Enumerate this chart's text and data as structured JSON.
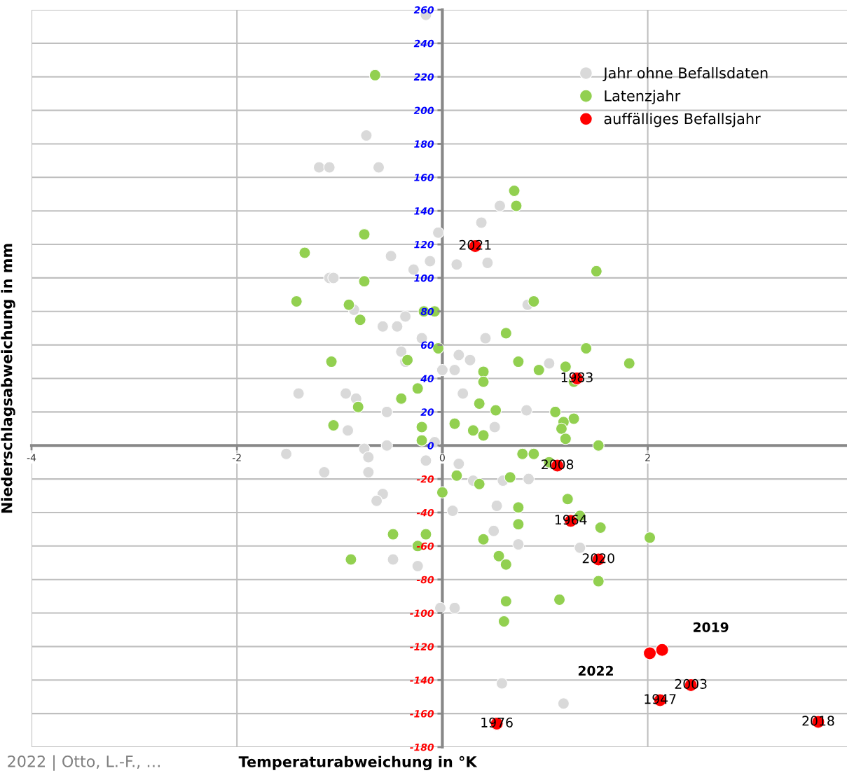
{
  "chart_data": {
    "type": "scatter",
    "xlabel": "Temperaturabweichung in °K",
    "ylabel": "Niederschlagsabweichung in mm",
    "xlim": [
      -4,
      3.94
    ],
    "ylim": [
      -180,
      260
    ],
    "xticks": [
      -4,
      -2,
      0,
      2
    ],
    "yticks": [
      -180,
      -160,
      -140,
      -120,
      -100,
      -80,
      -60,
      -40,
      -20,
      0,
      20,
      40,
      60,
      80,
      100,
      120,
      140,
      160,
      180,
      200,
      220,
      240,
      260
    ],
    "grid": true,
    "legend": "top right",
    "marker": "circle",
    "series": [
      {
        "name": "Jahr ohne Befallsdaten",
        "color": "#d9d9d9",
        "x": [
          -0.16,
          -0.74,
          -1.2,
          -1.1,
          -0.62,
          0.56,
          0.38,
          -0.04,
          -0.5,
          -0.12,
          0.14,
          0.44,
          -0.28,
          -1.1,
          -1.06,
          0.83,
          -0.86,
          -0.36,
          -0.58,
          -0.44,
          -0.2,
          0.42,
          -0.4,
          -0.36,
          0.16,
          0.27,
          0,
          0.12,
          1.04,
          -1.4,
          -0.94,
          -0.84,
          0.2,
          -0.54,
          0.82,
          -0.92,
          0.51,
          -0.075,
          -0.54,
          -1.52,
          -0.76,
          -0.72,
          -0.72,
          -1.15,
          -0.16,
          0.16,
          0.59,
          0.3,
          0.84,
          -0.58,
          -0.64,
          0.1,
          0.53,
          0.5,
          0.74,
          1.34,
          -0.48,
          -0.24,
          -0.02,
          0.12,
          0.58,
          1.18
        ],
        "values": [
          257,
          185,
          166,
          166,
          166,
          143,
          133,
          127,
          113,
          110,
          108,
          109,
          105,
          100,
          100,
          84,
          81,
          77,
          71,
          71,
          64,
          64,
          56,
          50,
          54,
          51,
          45,
          45,
          49,
          31,
          31,
          28,
          31,
          20,
          21,
          9,
          11,
          2,
          0,
          -5,
          -2,
          -7,
          -16,
          -16,
          -9,
          -11,
          -21,
          -21,
          -20,
          -29,
          -33,
          -39,
          -36,
          -51,
          -59,
          -61,
          -68,
          -72,
          -97,
          -97,
          -142,
          -154
        ]
      },
      {
        "name": "Latenzjahr",
        "color": "#92d050",
        "x": [
          -0.655,
          0.7,
          0.72,
          -0.76,
          -1.34,
          1.5,
          -0.76,
          -1.42,
          0.89,
          -0.91,
          -0.18,
          -0.075,
          -0.8,
          0.62,
          1.4,
          -0.04,
          -1.08,
          -0.34,
          1.82,
          0.74,
          1.2,
          0.94,
          0.4,
          0.4,
          1.28,
          -0.24,
          -0.4,
          -0.82,
          0.36,
          0.52,
          1.1,
          1.28,
          1.18,
          -1.06,
          -0.2,
          0.12,
          0.3,
          0.4,
          1.16,
          1.2,
          -0.2,
          1.52,
          0.78,
          0.89,
          1.04,
          0.14,
          0.66,
          0.36,
          0,
          1.22,
          0.74,
          1.34,
          0.74,
          1.54,
          -0.48,
          -0.16,
          0.4,
          2.02,
          -0.24,
          -0.89,
          0.55,
          0.62,
          1.52,
          1.14,
          0.62,
          0.6
        ],
        "values": [
          221,
          152,
          143,
          126,
          115,
          104,
          98,
          86,
          86,
          84,
          80,
          80,
          75,
          67,
          58,
          58,
          50,
          51,
          49,
          50,
          47,
          45,
          44,
          38,
          38,
          34,
          28,
          23,
          25,
          21,
          20,
          16,
          14,
          12,
          11,
          13,
          9,
          6,
          10,
          4,
          3,
          0,
          -5,
          -5,
          -10,
          -18,
          -19,
          -23,
          -28,
          -32,
          -37,
          -42,
          -47,
          -49,
          -53,
          -53,
          -56,
          -55,
          -60,
          -68,
          -66,
          -71,
          -81,
          -92,
          -93,
          -105
        ]
      },
      {
        "name": "auffälliges Befallsjahr",
        "color": "#ff0000",
        "x": [
          0.32,
          1.31,
          1.12,
          1.25,
          1.52,
          2.14,
          2.02,
          2.42,
          2.12,
          0.53,
          3.66
        ],
        "values": [
          119,
          40,
          -12,
          -45,
          -68,
          -122,
          -124,
          -143,
          -152,
          -166,
          -165
        ]
      }
    ],
    "annotations": [
      {
        "text": "2021",
        "x": 0.32,
        "y": 119
      },
      {
        "text": "1983",
        "x": 1.31,
        "y": 40
      },
      {
        "text": "2008",
        "x": 1.12,
        "y": -12
      },
      {
        "text": "1964",
        "x": 1.25,
        "y": -45
      },
      {
        "text": "2020",
        "x": 1.52,
        "y": -68
      },
      "2019",
      "2022",
      {
        "text": "2003",
        "x": 2.42,
        "y": -143
      },
      {
        "text": "1947",
        "x": 2.12,
        "y": -152
      },
      {
        "text": "1976",
        "x": 0.53,
        "y": -166
      },
      {
        "text": "2018",
        "x": 3.66,
        "y": -165
      },
      "2022 | Otto, L.-F., …"
    ]
  }
}
